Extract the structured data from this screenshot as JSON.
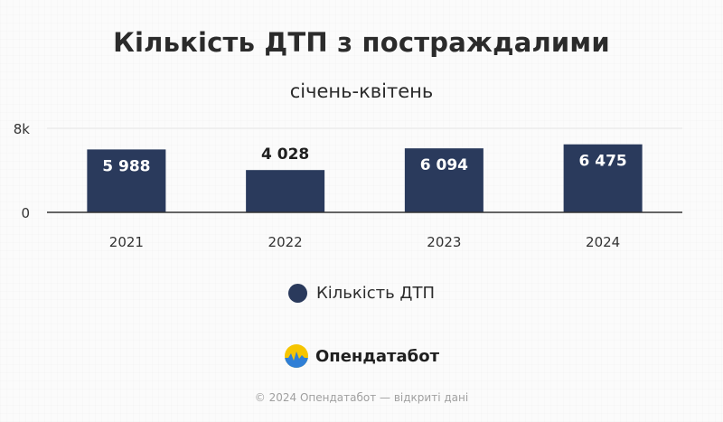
{
  "title": "Кількість ДТП з постраждалими",
  "subtitle": "січень-квітень",
  "legend": {
    "label": "Кількість ДТП",
    "color": "#2a3a5c"
  },
  "branding": {
    "name": "Опендатабот"
  },
  "footer": "© 2024 Опендатабот — відкриті дані",
  "chart_data": {
    "type": "bar",
    "categories": [
      "2021",
      "2022",
      "2023",
      "2024"
    ],
    "series": [
      {
        "name": "Кількість ДТП",
        "values": [
          5988,
          4028,
          6094,
          6475
        ],
        "labels": [
          "5 988",
          "4 028",
          "6 094",
          "6 475"
        ],
        "color": "#2a3a5c"
      }
    ],
    "y_ticks": [
      {
        "value": 0,
        "label": "0"
      },
      {
        "value": 8000,
        "label": "8k"
      }
    ],
    "ylim": [
      0,
      8000
    ],
    "grid": true,
    "legend_position": "bottom",
    "xlabel": "",
    "ylabel": ""
  }
}
